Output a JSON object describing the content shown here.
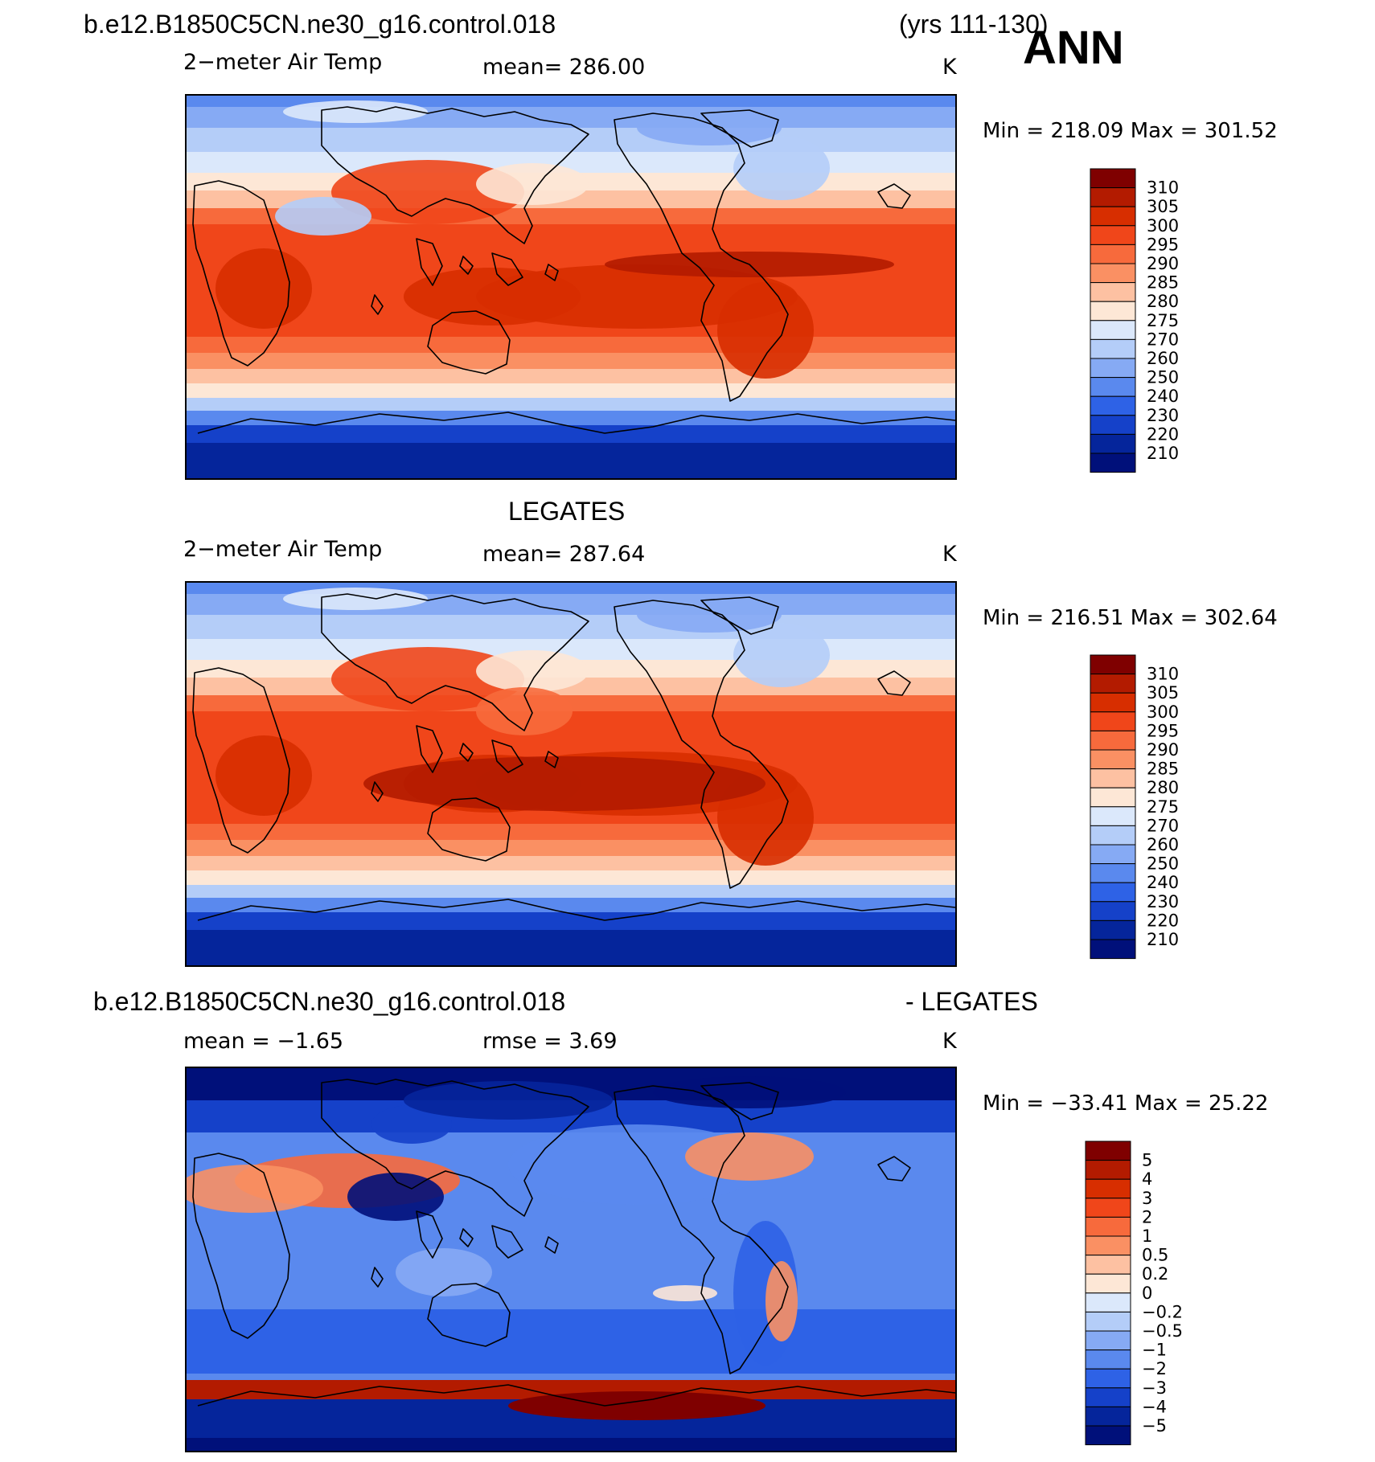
{
  "header": {
    "case_name": "b.e12.B1850C5CN.ne30_g16.control.018",
    "years": "(yrs 111-130)",
    "season": "ANN"
  },
  "panels": [
    {
      "id": "model",
      "title": "",
      "variable": "2−meter Air Temp",
      "stat": "mean=  286.00",
      "units": "K",
      "minmax": "Min  =  218.09  Max  =  301.52",
      "palette": "temp",
      "colorbar_labels": [
        "310",
        "305",
        "300",
        "295",
        "290",
        "285",
        "280",
        "275",
        "270",
        "260",
        "250",
        "240",
        "230",
        "220",
        "210"
      ]
    },
    {
      "id": "obs",
      "title": "LEGATES",
      "variable": "2−meter Air Temp",
      "stat": "mean=  287.64",
      "units": "K",
      "minmax": "Min  =  216.51  Max  =  302.64",
      "palette": "temp",
      "colorbar_labels": [
        "310",
        "305",
        "300",
        "295",
        "290",
        "285",
        "280",
        "275",
        "270",
        "260",
        "250",
        "240",
        "230",
        "220",
        "210"
      ]
    },
    {
      "id": "diff",
      "title_left": "b.e12.B1850C5CN.ne30_g16.control.018",
      "title_right": "- LEGATES",
      "stat_left": "mean =    −1.65",
      "stat_right": "rmse =     3.69",
      "units": "K",
      "minmax": "Min  =  −33.41  Max  =   25.22",
      "palette": "diff",
      "colorbar_labels": [
        "5",
        "4",
        "3",
        "2",
        "1",
        "0.5",
        "0.2",
        "0",
        "−0.2",
        "−0.5",
        "−1",
        "−2",
        "−3",
        "−4",
        "−5"
      ]
    }
  ],
  "colors": {
    "temp_palette": [
      "#7f0000",
      "#b31b00",
      "#d72e00",
      "#f0461a",
      "#f76a3c",
      "#fa9063",
      "#fdc1a2",
      "#fde7d6",
      "#dbe8fb",
      "#b4cdf8",
      "#86aaf4",
      "#5a89ee",
      "#2e62e6",
      "#1541c9",
      "#05259b",
      "#00107a"
    ],
    "diff_palette": [
      "#7f0000",
      "#b31b00",
      "#d72e00",
      "#f0461a",
      "#f76a3c",
      "#fa9063",
      "#fdc1a2",
      "#fde7d6",
      "#dbe8fb",
      "#b4cdf8",
      "#86aaf4",
      "#5a89ee",
      "#2e62e6",
      "#1541c9",
      "#05259b",
      "#00107a"
    ],
    "coastline": "#000000"
  }
}
